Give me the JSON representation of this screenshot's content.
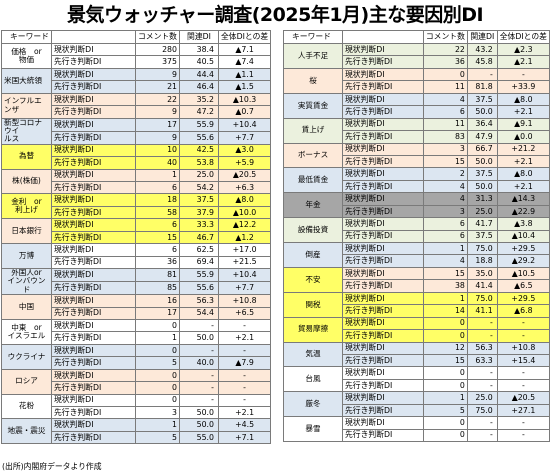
{
  "title": "景気ウォッチャー調査(2025年1月)主な要因別DI",
  "headers": [
    "キーワード",
    "",
    "コメント数",
    "関連DI",
    "全体DIとの差"
  ],
  "left": [
    {
      "keyword": "価格　or\n物価",
      "bg": "#ffffff",
      "align": "center",
      "rows": [
        {
          "type": "現状判断DI",
          "count": "280",
          "di": "38.4",
          "diff": "▲7.1",
          "bg": "#ffffff"
        },
        {
          "type": "先行き判断DI",
          "count": "375",
          "di": "40.5",
          "diff": "▲7.4",
          "bg": "#ffffff"
        }
      ]
    },
    {
      "keyword": "米国大統領",
      "bg": "#dce6f1",
      "align": "left",
      "rows": [
        {
          "type": "現状判断DI",
          "count": "9",
          "di": "44.4",
          "diff": "▲1.1",
          "bg": "#dce6f1"
        },
        {
          "type": "先行き判断DI",
          "count": "21",
          "di": "46.4",
          "diff": "▲1.5",
          "bg": "#dce6f1"
        }
      ]
    },
    {
      "keyword": "インフルエンザ",
      "bg": "#fde9d9",
      "align": "left",
      "rows": [
        {
          "type": "現状判断DI",
          "count": "22",
          "di": "35.2",
          "diff": "▲10.3",
          "bg": "#fde9d9"
        },
        {
          "type": "先行き判断DI",
          "count": "9",
          "di": "47.2",
          "diff": "▲0.7",
          "bg": "#fde9d9"
        }
      ]
    },
    {
      "keyword": "新型コロナウイ\nルス",
      "bg": "#dce6f1",
      "align": "left",
      "rows": [
        {
          "type": "現状判断DI",
          "count": "17",
          "di": "55.9",
          "diff": "+10.4",
          "bg": "#dce6f1"
        },
        {
          "type": "先行き判断DI",
          "count": "9",
          "di": "55.6",
          "diff": "+7.7",
          "bg": "#dce6f1"
        }
      ]
    },
    {
      "keyword": "為替",
      "bg": "#ffff66",
      "align": "center",
      "rows": [
        {
          "type": "現状判断DI",
          "count": "10",
          "di": "42.5",
          "diff": "▲3.0",
          "bg": "#ffff66"
        },
        {
          "type": "先行き判断DI",
          "count": "40",
          "di": "53.8",
          "diff": "+5.9",
          "bg": "#ffff66"
        }
      ]
    },
    {
      "keyword": "株(株価)",
      "bg": "#fde9d9",
      "align": "center",
      "rows": [
        {
          "type": "現状判断DI",
          "count": "1",
          "di": "25.0",
          "diff": "▲20.5",
          "bg": "#fde9d9"
        },
        {
          "type": "先行き判断DI",
          "count": "6",
          "di": "54.2",
          "diff": "+6.3",
          "bg": "#fde9d9"
        }
      ]
    },
    {
      "keyword": "金利　or\n利上げ",
      "bg": "#ffff66",
      "align": "center",
      "rows": [
        {
          "type": "現状判断DI",
          "count": "18",
          "di": "37.5",
          "diff": "▲8.0",
          "bg": "#ffff66"
        },
        {
          "type": "先行き判断DI",
          "count": "58",
          "di": "37.9",
          "diff": "▲10.0",
          "bg": "#ffff66"
        }
      ]
    },
    {
      "keyword": "日本銀行",
      "bg": "#fde9d9",
      "align": "center",
      "rows": [
        {
          "type": "現状判断DI",
          "count": "6",
          "di": "33.3",
          "diff": "▲12.2",
          "bg": "#ffff66"
        },
        {
          "type": "先行き判断DI",
          "count": "15",
          "di": "46.7",
          "diff": "▲1.2",
          "bg": "#ffff66"
        }
      ]
    },
    {
      "keyword": "万博",
      "bg": "#dce6f1",
      "align": "center",
      "rows": [
        {
          "type": "現状判断DI",
          "count": "6",
          "di": "62.5",
          "diff": "+17.0",
          "bg": "#ffffff"
        },
        {
          "type": "先行き判断DI",
          "count": "36",
          "di": "69.4",
          "diff": "+21.5",
          "bg": "#ffffff"
        }
      ]
    },
    {
      "keyword": "外国人or\nインバウンド",
      "bg": "#dce6f1",
      "align": "center",
      "rows": [
        {
          "type": "現状判断DI",
          "count": "81",
          "di": "55.9",
          "diff": "+10.4",
          "bg": "#dce6f1"
        },
        {
          "type": "先行き判断DI",
          "count": "85",
          "di": "55.6",
          "diff": "+7.7",
          "bg": "#dce6f1"
        }
      ]
    },
    {
      "keyword": "中国",
      "bg": "#fde9d9",
      "align": "center",
      "rows": [
        {
          "type": "現状判断DI",
          "count": "16",
          "di": "56.3",
          "diff": "+10.8",
          "bg": "#fde9d9"
        },
        {
          "type": "先行き判断DI",
          "count": "17",
          "di": "54.4",
          "diff": "+6.5",
          "bg": "#fde9d9"
        }
      ]
    },
    {
      "keyword": "中東　or\nイスラエル",
      "bg": "#ffffff",
      "align": "center",
      "rows": [
        {
          "type": "現状判断DI",
          "count": "0",
          "di": "-",
          "diff": "-",
          "bg": "#ffffff"
        },
        {
          "type": "先行き判断DI",
          "count": "1",
          "di": "50.0",
          "diff": "+2.1",
          "bg": "#ffffff"
        }
      ]
    },
    {
      "keyword": "ウクライナ",
      "bg": "#dce6f1",
      "align": "center",
      "rows": [
        {
          "type": "現状判断DI",
          "count": "0",
          "di": "-",
          "diff": "-",
          "bg": "#dce6f1"
        },
        {
          "type": "先行き判断DI",
          "count": "5",
          "di": "40.0",
          "diff": "▲7.9",
          "bg": "#dce6f1"
        }
      ]
    },
    {
      "keyword": "ロシア",
      "bg": "#fde9d9",
      "align": "center",
      "rows": [
        {
          "type": "現状判断DI",
          "count": "0",
          "di": "-",
          "diff": "-",
          "bg": "#fde9d9"
        },
        {
          "type": "先行き判断DI",
          "count": "0",
          "di": "-",
          "diff": "-",
          "bg": "#fde9d9"
        }
      ]
    },
    {
      "keyword": "花粉",
      "bg": "#ffffff",
      "align": "center",
      "rows": [
        {
          "type": "現状判断DI",
          "count": "0",
          "di": "-",
          "diff": "-",
          "bg": "#ffffff"
        },
        {
          "type": "先行き判断DI",
          "count": "3",
          "di": "50.0",
          "diff": "+2.1",
          "bg": "#ffffff"
        }
      ]
    },
    {
      "keyword": "地震・震災",
      "bg": "#dce6f1",
      "align": "center",
      "rows": [
        {
          "type": "現状判断DI",
          "count": "1",
          "di": "50.0",
          "diff": "+4.5",
          "bg": "#dce6f1"
        },
        {
          "type": "先行き判断DI",
          "count": "5",
          "di": "55.0",
          "diff": "+7.1",
          "bg": "#dce6f1"
        }
      ]
    }
  ],
  "right": [
    {
      "keyword": "人手不足",
      "bg": "#ebf1de",
      "align": "center",
      "rows": [
        {
          "type": "現状判断DI",
          "count": "22",
          "di": "43.2",
          "diff": "▲2.3",
          "bg": "#ebf1de"
        },
        {
          "type": "先行き判断DI",
          "count": "36",
          "di": "45.8",
          "diff": "▲2.1",
          "bg": "#ebf1de"
        }
      ]
    },
    {
      "keyword": "桜",
      "bg": "#fde9d9",
      "align": "center",
      "rows": [
        {
          "type": "現状判断DI",
          "count": "0",
          "di": "-",
          "diff": "-",
          "bg": "#fde9d9"
        },
        {
          "type": "先行き判断DI",
          "count": "11",
          "di": "81.8",
          "diff": "+33.9",
          "bg": "#fde9d9"
        }
      ]
    },
    {
      "keyword": "実質賃金",
      "bg": "#dce6f1",
      "align": "center",
      "rows": [
        {
          "type": "現状判断DI",
          "count": "4",
          "di": "37.5",
          "diff": "▲8.0",
          "bg": "#dce6f1"
        },
        {
          "type": "先行き判断DI",
          "count": "6",
          "di": "50.0",
          "diff": "+2.1",
          "bg": "#dce6f1"
        }
      ]
    },
    {
      "keyword": "賃上げ",
      "bg": "#ebf1de",
      "align": "center",
      "rows": [
        {
          "type": "現状判断DI",
          "count": "11",
          "di": "36.4",
          "diff": "▲9.1",
          "bg": "#ebf1de"
        },
        {
          "type": "先行き判断DI",
          "count": "83",
          "di": "47.9",
          "diff": "▲0.0",
          "bg": "#ebf1de"
        }
      ]
    },
    {
      "keyword": "ボーナス",
      "bg": "#fde9d9",
      "align": "center",
      "rows": [
        {
          "type": "現状判断DI",
          "count": "3",
          "di": "66.7",
          "diff": "+21.2",
          "bg": "#fde9d9"
        },
        {
          "type": "先行き判断DI",
          "count": "15",
          "di": "50.0",
          "diff": "+2.1",
          "bg": "#fde9d9"
        }
      ]
    },
    {
      "keyword": "最低賃金",
      "bg": "#dce6f1",
      "align": "center",
      "rows": [
        {
          "type": "現状判断DI",
          "count": "2",
          "di": "37.5",
          "diff": "▲8.0",
          "bg": "#dce6f1"
        },
        {
          "type": "先行き判断DI",
          "count": "4",
          "di": "50.0",
          "diff": "+2.1",
          "bg": "#dce6f1"
        }
      ]
    },
    {
      "keyword": "年金",
      "bg": "#a6a6a6",
      "align": "center",
      "rows": [
        {
          "type": "現状判断DI",
          "count": "4",
          "di": "31.3",
          "diff": "▲14.3",
          "bg": "#a6a6a6"
        },
        {
          "type": "先行き判断DI",
          "count": "3",
          "di": "25.0",
          "diff": "▲22.9",
          "bg": "#a6a6a6"
        }
      ]
    },
    {
      "keyword": "設備投資",
      "bg": "#ebf1de",
      "align": "center",
      "rows": [
        {
          "type": "現状判断DI",
          "count": "6",
          "di": "41.7",
          "diff": "▲3.8",
          "bg": "#ebf1de"
        },
        {
          "type": "先行き判断DI",
          "count": "6",
          "di": "37.5",
          "diff": "▲10.4",
          "bg": "#ebf1de"
        }
      ]
    },
    {
      "keyword": "倒産",
      "bg": "#dce6f1",
      "align": "center",
      "rows": [
        {
          "type": "現状判断DI",
          "count": "1",
          "di": "75.0",
          "diff": "+29.5",
          "bg": "#dce6f1"
        },
        {
          "type": "先行き判断DI",
          "count": "4",
          "di": "18.8",
          "diff": "▲29.2",
          "bg": "#dce6f1"
        }
      ]
    },
    {
      "keyword": "不安",
      "bg": "#ffff66",
      "align": "center",
      "rows": [
        {
          "type": "現状判断DI",
          "count": "15",
          "di": "35.0",
          "diff": "▲10.5",
          "bg": "#fde9d9"
        },
        {
          "type": "先行き判断DI",
          "count": "38",
          "di": "41.4",
          "diff": "▲6.5",
          "bg": "#fde9d9"
        }
      ]
    },
    {
      "keyword": "関税",
      "bg": "#ffff66",
      "align": "center",
      "rows": [
        {
          "type": "現状判断DI",
          "count": "1",
          "di": "75.0",
          "diff": "+29.5",
          "bg": "#ffff66"
        },
        {
          "type": "先行き判断DI",
          "count": "14",
          "di": "41.1",
          "diff": "▲6.8",
          "bg": "#ffff66"
        }
      ]
    },
    {
      "keyword": "貿易摩擦",
      "bg": "#ffff66",
      "align": "center",
      "rows": [
        {
          "type": "現状判断DI",
          "count": "0",
          "di": "-",
          "diff": "-",
          "bg": "#ffff66"
        },
        {
          "type": "先行き判断DI",
          "count": "0",
          "di": "-",
          "diff": "-",
          "bg": "#ffff66"
        }
      ]
    },
    {
      "keyword": "気温",
      "bg": "#dce6f1",
      "align": "center",
      "rows": [
        {
          "type": "現状判断DI",
          "count": "12",
          "di": "56.3",
          "diff": "+10.8",
          "bg": "#dce6f1"
        },
        {
          "type": "先行き判断DI",
          "count": "15",
          "di": "63.3",
          "diff": "+15.4",
          "bg": "#dce6f1"
        }
      ]
    },
    {
      "keyword": "台風",
      "bg": "#ffffff",
      "align": "center",
      "rows": [
        {
          "type": "現状判断DI",
          "count": "0",
          "di": "-",
          "diff": "-",
          "bg": "#ffffff"
        },
        {
          "type": "先行き判断DI",
          "count": "0",
          "di": "-",
          "diff": "-",
          "bg": "#ffffff"
        }
      ]
    },
    {
      "keyword": "厳冬",
      "bg": "#dce6f1",
      "align": "center",
      "rows": [
        {
          "type": "現状判断DI",
          "count": "1",
          "di": "25.0",
          "diff": "▲20.5",
          "bg": "#dce6f1"
        },
        {
          "type": "先行き判断DI",
          "count": "5",
          "di": "75.0",
          "diff": "+27.1",
          "bg": "#dce6f1"
        }
      ]
    },
    {
      "keyword": "暴雪",
      "bg": "#ffffff",
      "align": "center",
      "rows": [
        {
          "type": "現状判断DI",
          "count": "0",
          "di": "-",
          "diff": "-",
          "bg": "#ffffff"
        },
        {
          "type": "先行き判断DI",
          "count": "0",
          "di": "-",
          "diff": "-",
          "bg": "#ffffff"
        }
      ]
    }
  ],
  "footnote": "(出所)内閣府データより作成"
}
